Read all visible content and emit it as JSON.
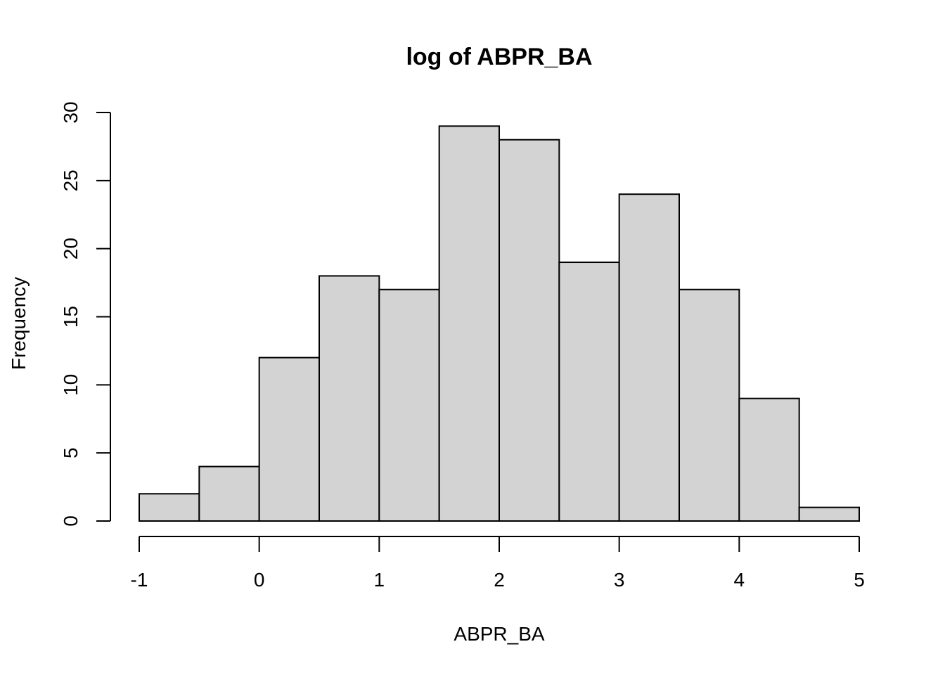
{
  "chart_data": {
    "type": "bar",
    "title": "log of ABPR_BA",
    "xlabel": "ABPR_BA",
    "ylabel": "Frequency",
    "bins": [
      {
        "x0": -1.0,
        "x1": -0.5,
        "count": 2
      },
      {
        "x0": -0.5,
        "x1": 0.0,
        "count": 4
      },
      {
        "x0": 0.0,
        "x1": 0.5,
        "count": 12
      },
      {
        "x0": 0.5,
        "x1": 1.0,
        "count": 18
      },
      {
        "x0": 1.0,
        "x1": 1.5,
        "count": 17
      },
      {
        "x0": 1.5,
        "x1": 2.0,
        "count": 29
      },
      {
        "x0": 2.0,
        "x1": 2.5,
        "count": 28
      },
      {
        "x0": 2.5,
        "x1": 3.0,
        "count": 19
      },
      {
        "x0": 3.0,
        "x1": 3.5,
        "count": 24
      },
      {
        "x0": 3.5,
        "x1": 4.0,
        "count": 17
      },
      {
        "x0": 4.0,
        "x1": 4.5,
        "count": 9
      },
      {
        "x0": 4.5,
        "x1": 5.0,
        "count": 1
      }
    ],
    "xticks": [
      -1,
      0,
      1,
      2,
      3,
      4,
      5
    ],
    "yticks": [
      0,
      5,
      10,
      15,
      20,
      25,
      30
    ],
    "xlim": [
      -1,
      5
    ],
    "ylim": [
      0,
      30
    ],
    "grid": false,
    "bar_fill": "#d3d3d3",
    "bar_edge": "#000000"
  }
}
